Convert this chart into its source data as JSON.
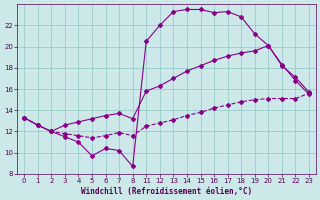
{
  "xlabel": "Windchill (Refroidissement éolien,°C)",
  "background_color": "#cce8e8",
  "grid_color": "#99cccc",
  "line_color": "#880088",
  "ylim": [
    8,
    24
  ],
  "yticks": [
    8,
    10,
    12,
    14,
    16,
    18,
    20,
    22
  ],
  "x_labels": [
    0,
    1,
    2,
    3,
    4,
    5,
    6,
    7,
    8,
    11,
    12,
    13,
    14,
    15,
    16,
    17,
    18,
    19,
    20,
    21,
    22,
    23
  ],
  "x_positions": [
    0,
    1,
    2,
    3,
    4,
    5,
    6,
    7,
    8,
    9,
    10,
    11,
    12,
    13,
    14,
    15,
    16,
    17,
    18,
    19,
    20,
    21
  ],
  "line1_y": [
    13.3,
    12.6,
    12.0,
    11.5,
    11.0,
    9.7,
    10.4,
    10.2,
    8.7,
    20.5,
    22.0,
    23.3,
    23.5,
    23.5,
    23.2,
    23.3,
    22.8,
    21.2,
    20.1,
    18.3,
    16.8,
    15.5
  ],
  "line2_y": [
    13.3,
    12.6,
    12.0,
    12.6,
    12.9,
    13.2,
    13.5,
    13.7,
    13.2,
    15.8,
    16.3,
    17.0,
    17.7,
    18.2,
    18.7,
    19.1,
    19.4,
    19.6,
    20.1,
    18.2,
    17.1,
    15.7
  ],
  "line3_y": [
    13.3,
    12.6,
    12.0,
    11.8,
    11.6,
    11.4,
    11.6,
    11.9,
    11.6,
    12.5,
    12.8,
    13.1,
    13.5,
    13.8,
    14.2,
    14.5,
    14.8,
    15.0,
    15.1,
    15.1,
    15.1,
    15.6
  ]
}
